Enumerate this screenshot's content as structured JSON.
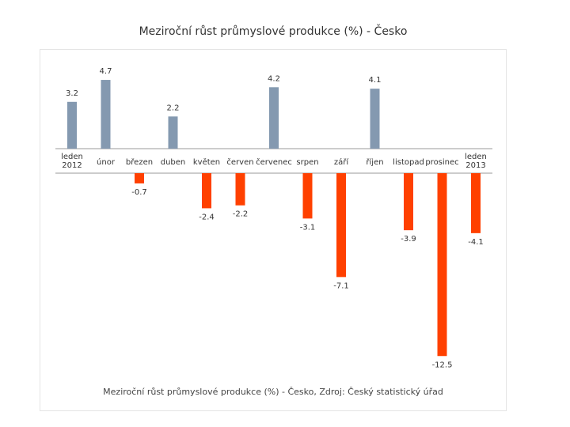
{
  "chart_data": {
    "type": "bar",
    "title": "Meziroční růst průmyslové produkce (%) - Česko",
    "caption": "Meziroční růst průmyslové produkce (%) - Česko, Zdroj: Český statistický úřad",
    "categories": [
      "leden 2012",
      "únor",
      "březen",
      "duben",
      "květen",
      "červen",
      "červenec",
      "srpen",
      "září",
      "říjen",
      "listopad",
      "prosinec",
      "leden 2013"
    ],
    "values": [
      3.2,
      4.7,
      -0.7,
      2.2,
      -2.4,
      -2.2,
      4.2,
      -3.1,
      -7.1,
      4.1,
      -3.9,
      -12.5,
      -4.1
    ],
    "data_labels": [
      "3.2",
      "4.7",
      "-0.7",
      "2.2",
      "-2.4",
      "-2.2",
      "4.2",
      "-3.1",
      "-7.1",
      "4.1",
      "-3.9",
      "-12.5",
      "-4.1"
    ],
    "colors": {
      "positive": "#8499b0",
      "negative": "#ff4000"
    },
    "grid": false,
    "legend": "none"
  }
}
